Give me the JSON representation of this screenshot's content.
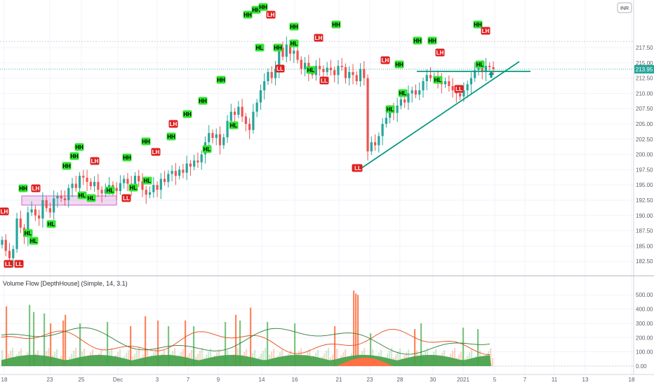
{
  "chart_data": {
    "type": "candlestick",
    "currency": "INR",
    "last_price": "213.95",
    "price_axis": {
      "min": 181.5,
      "max": 220.5,
      "ticks": [
        "182.50",
        "185.00",
        "187.50",
        "190.00",
        "192.50",
        "195.00",
        "197.50",
        "200.00",
        "202.50",
        "205.00",
        "207.50",
        "210.00",
        "212.50",
        "215.00",
        "217.50"
      ]
    },
    "x_axis": {
      "ticks": [
        "18",
        "23",
        "25",
        "Dec",
        "3",
        "7",
        "9",
        "14",
        "16",
        "21",
        "23",
        "28",
        "30",
        "2021",
        "5",
        "7",
        "11",
        "13",
        "18"
      ]
    },
    "closes": [
      186.0,
      184.2,
      183.0,
      184.5,
      189.5,
      188.0,
      186.5,
      190.5,
      191.0,
      190.0,
      189.5,
      192.5,
      191.2,
      190.5,
      192.8,
      193.2,
      192.8,
      192.5,
      194.5,
      195.2,
      194.5,
      196.5,
      196.2,
      195.5,
      194.8,
      195.5,
      194.2,
      193.6,
      194.3,
      195.0,
      194.5,
      194.0,
      195.3,
      196.0,
      195.2,
      194.7,
      196.5,
      195.6,
      194.2,
      193.4,
      193.8,
      195.0,
      194.2,
      196.0,
      195.5,
      196.8,
      197.3,
      196.5,
      197.5,
      197.0,
      198.5,
      198.0,
      199.0,
      198.7,
      200.0,
      202.0,
      203.5,
      202.7,
      203.3,
      201.5,
      202.8,
      205.5,
      207.0,
      206.5,
      207.8,
      206.2,
      205.0,
      204.0,
      207.0,
      208.5,
      210.5,
      212.0,
      213.5,
      212.5,
      214.0,
      217.5,
      216.0,
      218.0,
      216.5,
      217.0,
      215.5,
      214.0,
      215.0,
      213.5,
      213.0,
      214.5,
      214.0,
      213.5,
      214.2,
      213.8,
      213.0,
      214.5,
      214.3,
      212.5,
      213.5,
      213.0,
      212.0,
      214.0,
      212.5,
      200.5,
      202.0,
      201.5,
      203.0,
      205.0,
      206.0,
      207.5,
      206.8,
      208.0,
      209.0,
      208.5,
      210.0,
      210.5,
      209.8,
      210.5,
      212.0,
      213.0,
      212.5,
      212.8,
      212.0,
      211.5,
      212.0,
      211.2,
      210.5,
      210.0,
      209.5,
      210.5,
      211.5,
      212.5,
      213.8,
      214.5,
      213.5,
      214.5,
      214.3,
      213.95
    ],
    "markers": [
      {
        "label": "LH",
        "type": "high"
      },
      {
        "label": "LL",
        "type": "low"
      },
      {
        "label": "LL",
        "type": "low"
      },
      {
        "label": "HL",
        "type": "low"
      },
      {
        "label": "HH",
        "type": "high"
      },
      {
        "label": "LH",
        "type": "high"
      },
      {
        "label": "HL",
        "type": "low"
      },
      {
        "label": "HL",
        "type": "low"
      },
      {
        "label": "HH",
        "type": "high"
      },
      {
        "label": "HH",
        "type": "high"
      },
      {
        "label": "HH",
        "type": "high"
      },
      {
        "label": "HL",
        "type": "low"
      },
      {
        "label": "HL",
        "type": "low"
      },
      {
        "label": "HL",
        "type": "low"
      },
      {
        "label": "LH",
        "type": "high"
      },
      {
        "label": "LL",
        "type": "low"
      },
      {
        "label": "HH",
        "type": "high"
      },
      {
        "label": "HL",
        "type": "low"
      },
      {
        "label": "LH",
        "type": "high"
      },
      {
        "label": "HL",
        "type": "low"
      },
      {
        "label": "HH",
        "type": "high"
      },
      {
        "label": "LH",
        "type": "high"
      },
      {
        "label": "HH",
        "type": "high"
      },
      {
        "label": "HH",
        "type": "high"
      },
      {
        "label": "HL",
        "type": "low"
      },
      {
        "label": "HH",
        "type": "high"
      },
      {
        "label": "HL",
        "type": "low"
      },
      {
        "label": "HH",
        "type": "high"
      },
      {
        "label": "HH",
        "type": "high"
      },
      {
        "label": "HL",
        "type": "low"
      },
      {
        "label": "HH",
        "type": "high"
      },
      {
        "label": "HH",
        "type": "high"
      },
      {
        "label": "HH",
        "type": "high"
      },
      {
        "label": "HL",
        "type": "low"
      },
      {
        "label": "LH",
        "type": "high"
      },
      {
        "label": "LL",
        "type": "low"
      },
      {
        "label": "HH",
        "type": "high"
      },
      {
        "label": "HL",
        "type": "low"
      },
      {
        "label": "LH",
        "type": "high"
      },
      {
        "label": "LL",
        "type": "low"
      },
      {
        "label": "HH",
        "type": "high"
      },
      {
        "label": "LL",
        "type": "low"
      },
      {
        "label": "LL",
        "type": "low"
      },
      {
        "label": "HH",
        "type": "high"
      },
      {
        "label": "LH",
        "type": "high"
      },
      {
        "label": "HL",
        "type": "low"
      },
      {
        "label": "HL",
        "type": "low"
      },
      {
        "label": "HH",
        "type": "high"
      },
      {
        "label": "HH",
        "type": "high"
      },
      {
        "label": "LH",
        "type": "high"
      },
      {
        "label": "HL",
        "type": "low"
      },
      {
        "label": "LL",
        "type": "low"
      },
      {
        "label": "HH",
        "type": "high"
      },
      {
        "label": "LH",
        "type": "high"
      },
      {
        "label": "HL",
        "type": "low"
      }
    ],
    "indicator": {
      "title": "Volume Flow [DepthHouse] (Simple, 14, 3.1)",
      "axis_ticks": [
        "0.00",
        "100.00",
        "200.00",
        "300.00",
        "400.00",
        "500.00"
      ],
      "axis_max": 570
    },
    "colors": {
      "up": "#26a69a",
      "down": "#ef5350",
      "hh_hl": "#2ee62e",
      "lh_ll": "#e02020",
      "trend": "#089981",
      "box": "#cc66cc",
      "vol_up": "#66bb6a",
      "vol_down": "#ff7043"
    }
  }
}
